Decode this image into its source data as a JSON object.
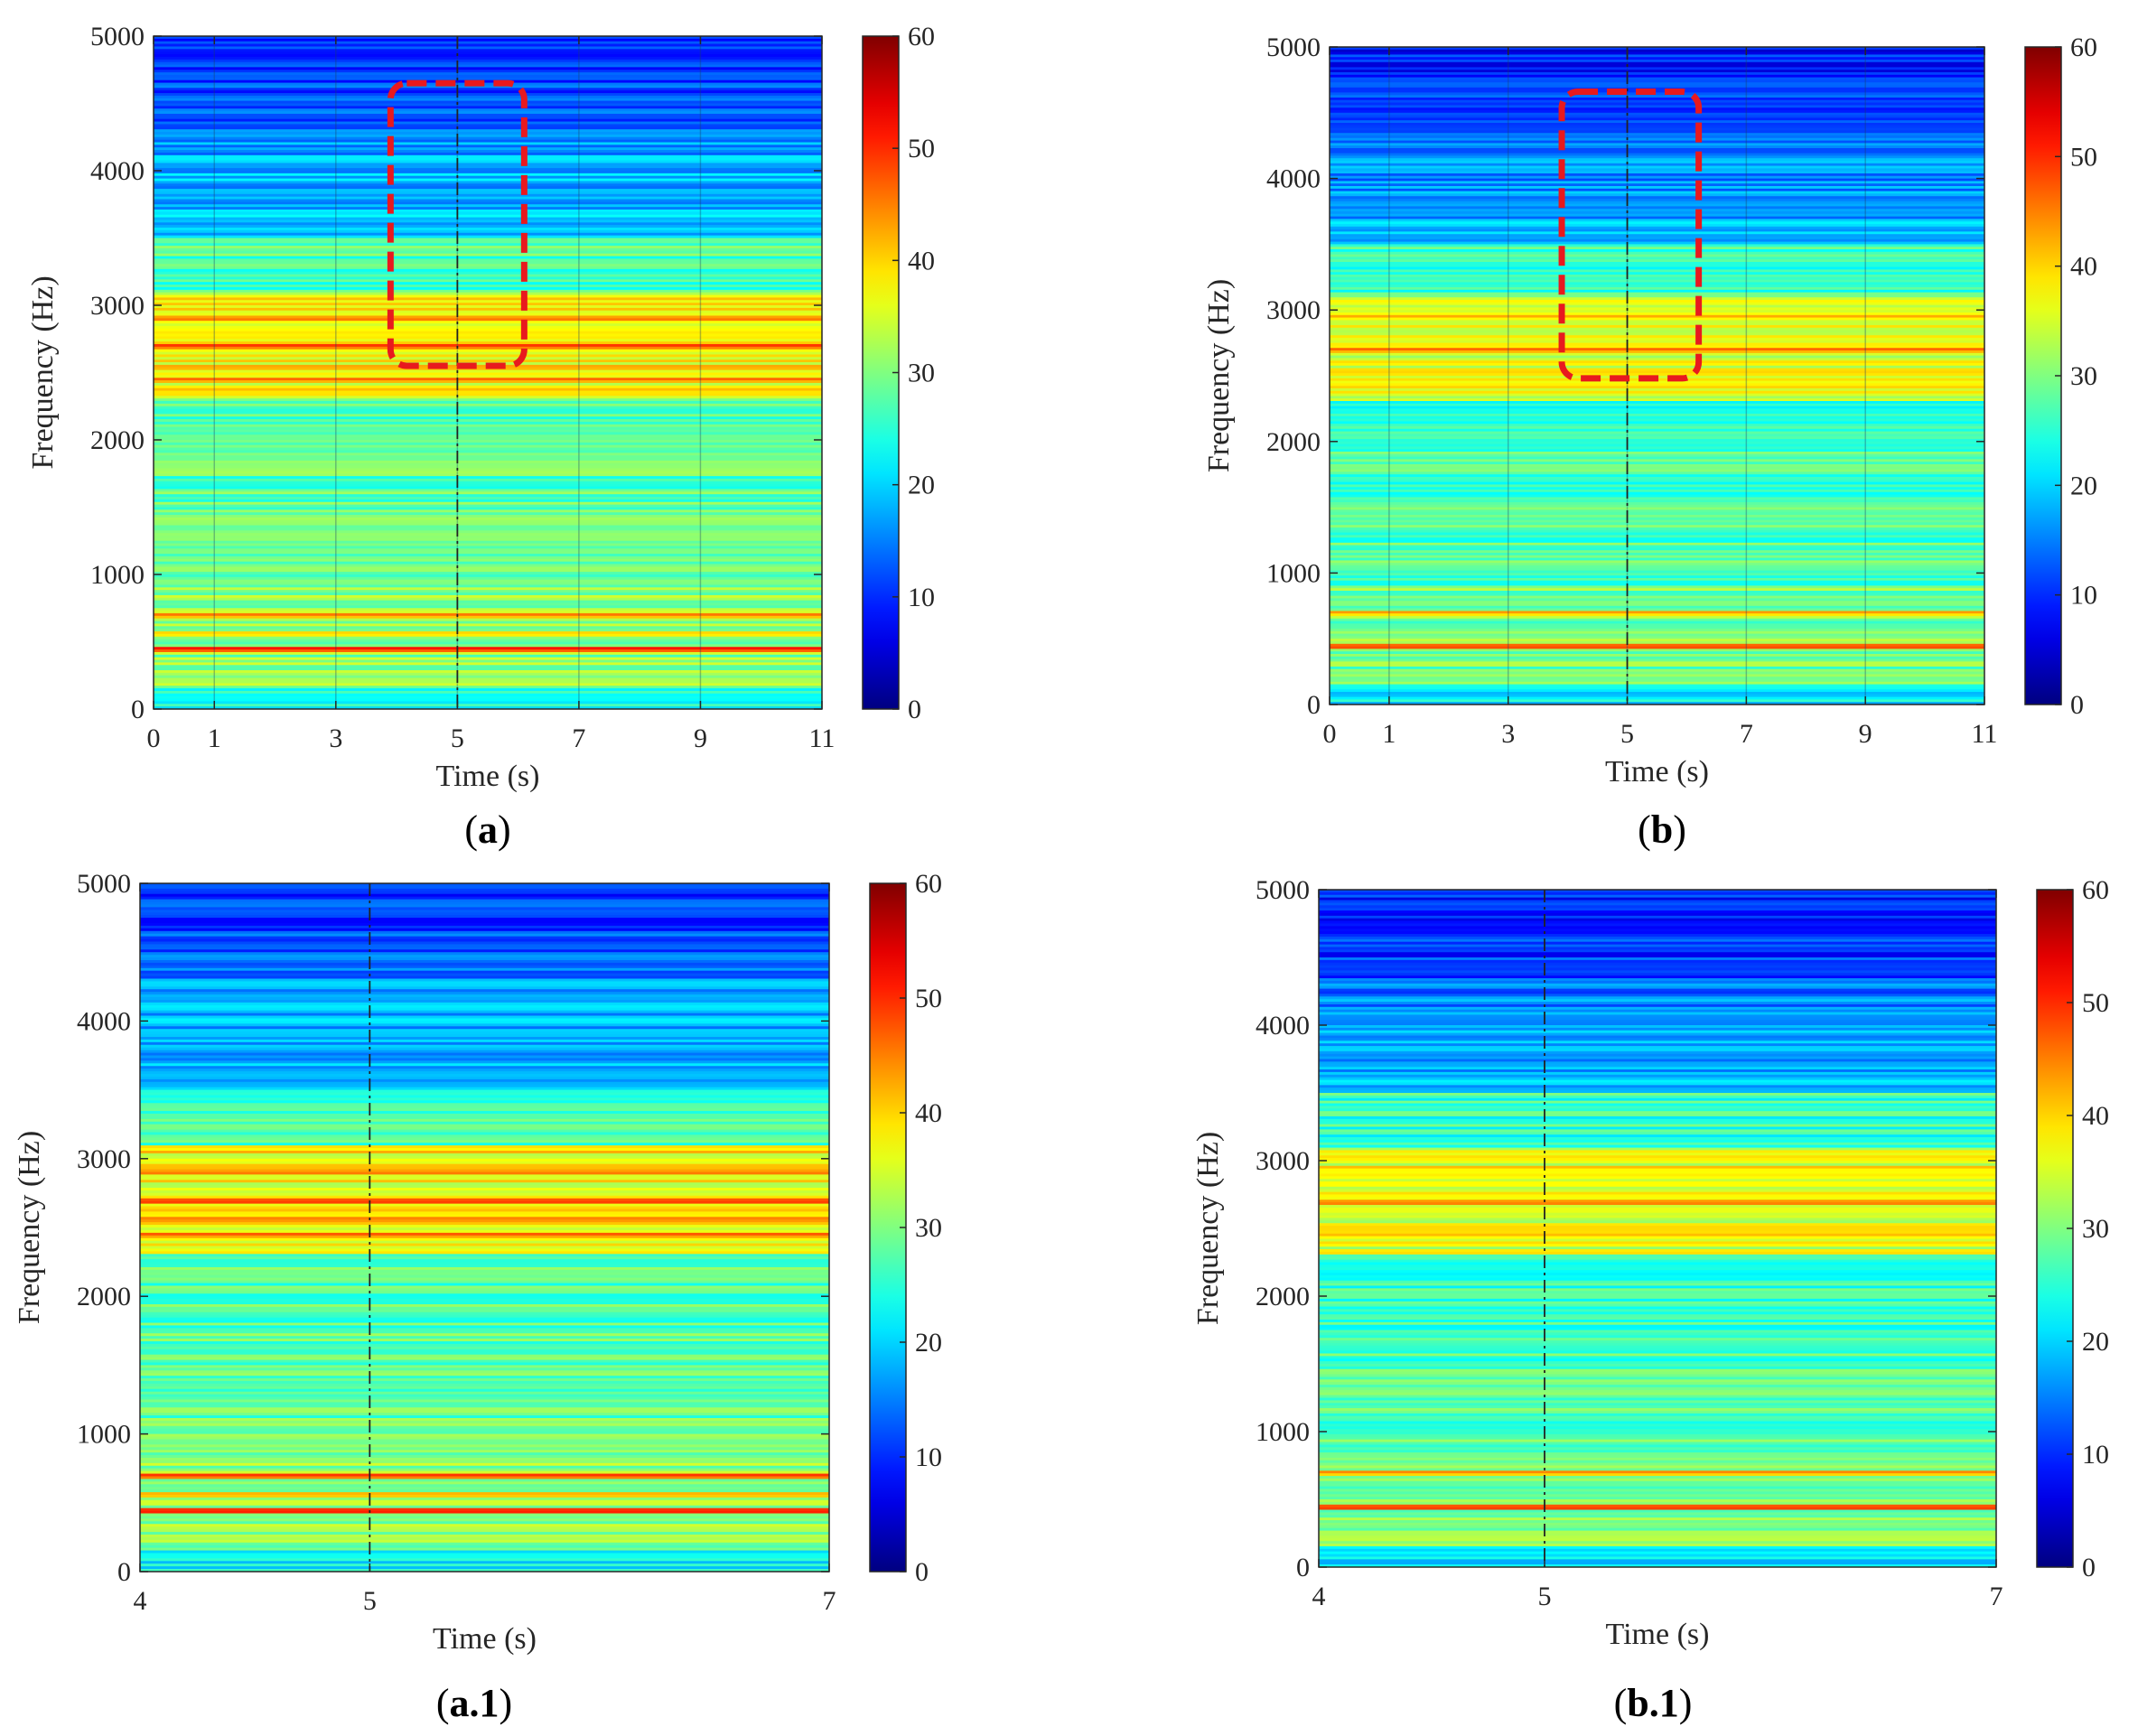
{
  "figure": {
    "colors": {
      "axis": "#262626",
      "tick_text": "#262626",
      "highlight_box": "#e8191e",
      "marker_line": "#222222"
    },
    "colormap": "jet",
    "colorbar_ticks": [
      0,
      10,
      20,
      30,
      40,
      50,
      60
    ]
  },
  "chart_data": [
    {
      "type": "heatmap",
      "panel": "a",
      "caption_open": "(",
      "caption_label": "a",
      "caption_close": ")",
      "title": "",
      "xlabel": "Time (s)",
      "ylabel": "Frequency (Hz)",
      "xlim": [
        0,
        11
      ],
      "ylim": [
        0,
        5000
      ],
      "xticks": [
        0,
        1,
        3,
        5,
        7,
        9,
        11
      ],
      "yticks": [
        0,
        1000,
        2000,
        3000,
        4000,
        5000
      ],
      "clim": [
        0,
        60
      ],
      "colorbar_label": "",
      "marker_time": 5,
      "vertical_gridlines": [
        1,
        3,
        5,
        7,
        9
      ],
      "highlight_region": {
        "time_range": [
          3.9,
          6.1
        ],
        "freq_range": [
          2550,
          4650
        ]
      },
      "description_bands_hz": [
        {
          "freq": 450,
          "level": 52
        },
        {
          "freq": 560,
          "level": 42
        },
        {
          "freq": 700,
          "level": 46
        },
        {
          "freq": 2450,
          "level": 47
        },
        {
          "freq": 2540,
          "level": 45
        },
        {
          "freq": 2700,
          "level": 50
        },
        {
          "freq": 2900,
          "level": 47
        },
        {
          "freq": 3050,
          "level": 42
        }
      ]
    },
    {
      "type": "heatmap",
      "panel": "b",
      "caption_open": "(",
      "caption_label": "b",
      "caption_close": ")",
      "title": "",
      "xlabel": "Time (s)",
      "ylabel": "Frequency (Hz)",
      "xlim": [
        0,
        11
      ],
      "ylim": [
        0,
        5000
      ],
      "xticks": [
        0,
        1,
        3,
        5,
        7,
        9,
        11
      ],
      "yticks": [
        0,
        1000,
        2000,
        3000,
        4000,
        5000
      ],
      "clim": [
        0,
        60
      ],
      "colorbar_label": "",
      "marker_time": 5,
      "vertical_gridlines": [
        1,
        3,
        5,
        7,
        9
      ],
      "highlight_region": {
        "time_range": [
          3.9,
          6.2
        ],
        "freq_range": [
          2480,
          4660
        ]
      },
      "description_bands_hz": [
        {
          "freq": 440,
          "level": 50
        },
        {
          "freq": 700,
          "level": 44
        },
        {
          "freq": 2420,
          "level": 42
        },
        {
          "freq": 2700,
          "level": 47
        },
        {
          "freq": 2950,
          "level": 43
        },
        {
          "freq": 3060,
          "level": 40
        }
      ]
    },
    {
      "type": "heatmap",
      "panel": "a.1",
      "caption_open": "(",
      "caption_label": "a.1",
      "caption_close": ")",
      "title": "",
      "xlabel": "Time (s)",
      "ylabel": "Frequency (Hz)",
      "xlim": [
        4,
        7
      ],
      "ylim": [
        0,
        5000
      ],
      "xticks": [
        4,
        5,
        7
      ],
      "yticks": [
        0,
        1000,
        2000,
        3000,
        4000,
        5000
      ],
      "clim": [
        0,
        60
      ],
      "colorbar_label": "",
      "marker_time": 5,
      "vertical_gridlines": [],
      "highlight_region": null,
      "description_bands_hz": [
        {
          "freq": 440,
          "level": 53
        },
        {
          "freq": 560,
          "level": 44
        },
        {
          "freq": 700,
          "level": 50
        },
        {
          "freq": 2450,
          "level": 48
        },
        {
          "freq": 2560,
          "level": 47
        },
        {
          "freq": 2690,
          "level": 51
        },
        {
          "freq": 2900,
          "level": 47
        },
        {
          "freq": 3050,
          "level": 43
        }
      ]
    },
    {
      "type": "heatmap",
      "panel": "b.1",
      "caption_open": "(",
      "caption_label": "b.1",
      "caption_close": ")",
      "title": "",
      "xlabel": "Time (s)",
      "ylabel": "Frequency (Hz)",
      "xlim": [
        4,
        7
      ],
      "ylim": [
        0,
        5000
      ],
      "xticks": [
        4,
        5,
        7
      ],
      "yticks": [
        0,
        1000,
        2000,
        3000,
        4000,
        5000
      ],
      "clim": [
        0,
        60
      ],
      "colorbar_label": "",
      "marker_time": 5,
      "vertical_gridlines": [],
      "highlight_region": null,
      "description_bands_hz": [
        {
          "freq": 440,
          "level": 51
        },
        {
          "freq": 700,
          "level": 45
        },
        {
          "freq": 2450,
          "level": 42
        },
        {
          "freq": 2690,
          "level": 47
        },
        {
          "freq": 2950,
          "level": 42
        },
        {
          "freq": 3060,
          "level": 39
        }
      ]
    }
  ]
}
